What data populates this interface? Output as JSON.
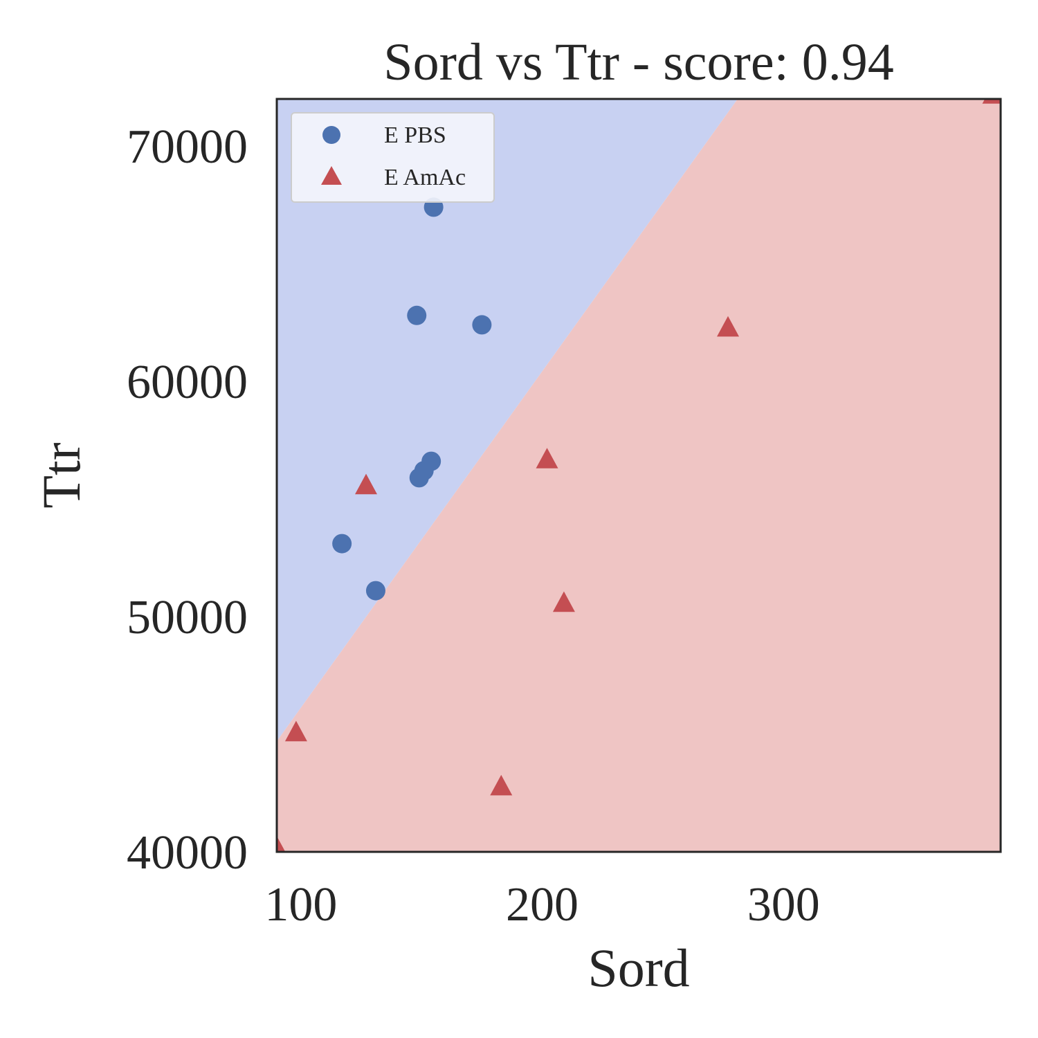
{
  "chart_data": {
    "type": "scatter",
    "title": "Sord vs Ttr - score: 0.94",
    "xlabel": "Sord",
    "ylabel": "Ttr",
    "xlim": [
      90,
      390
    ],
    "ylim": [
      40000,
      72000
    ],
    "xticks": [
      100,
      200,
      300
    ],
    "yticks": [
      40000,
      50000,
      60000,
      70000
    ],
    "xtick_labels": [
      "100",
      "200",
      "300"
    ],
    "ytick_labels": [
      "40000",
      "50000",
      "60000",
      "70000"
    ],
    "grid": false,
    "legend_position": "top-left",
    "decision_boundary": {
      "points": [
        [
          90,
          44700
        ],
        [
          281,
          72000
        ]
      ],
      "upper_region_class": "E PBS",
      "lower_region_class": "E AmAc"
    },
    "colors": {
      "region_pbs": "#c8d1f2",
      "region_amac": "#efc5c4",
      "pbs": "#4c72b0",
      "amac": "#c44e52"
    },
    "series": [
      {
        "name": "E PBS",
        "marker": "circle",
        "points": [
          [
            155,
            67400
          ],
          [
            148,
            62800
          ],
          [
            175,
            62400
          ],
          [
            154,
            56600
          ],
          [
            151,
            56200
          ],
          [
            149,
            55900
          ],
          [
            117,
            53100
          ],
          [
            131,
            51100
          ]
        ]
      },
      {
        "name": "E AmAc",
        "marker": "triangle",
        "points": [
          [
            387,
            72200
          ],
          [
            277,
            62300
          ],
          [
            202,
            56700
          ],
          [
            127,
            55600
          ],
          [
            209,
            50600
          ],
          [
            98,
            45100
          ],
          [
            183,
            42800
          ],
          [
            90,
            40200
          ]
        ]
      }
    ]
  }
}
